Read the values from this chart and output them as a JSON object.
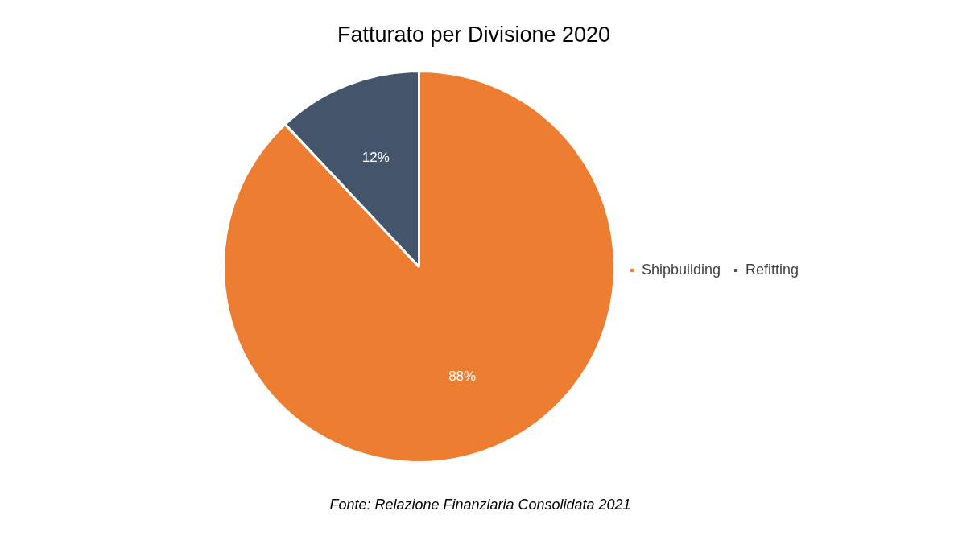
{
  "chart_data": {
    "type": "pie",
    "title": "Fatturato per Divisione 2020",
    "categories": [
      "Shipbuilding",
      "Refitting"
    ],
    "values": [
      88,
      12
    ],
    "colors": [
      "#ed7d31",
      "#44546a"
    ],
    "value_labels": [
      "88%",
      "12%"
    ],
    "legend": "right",
    "annotations": [
      "Fonte: Relazione Finanziaria Consolidata 2021"
    ]
  }
}
